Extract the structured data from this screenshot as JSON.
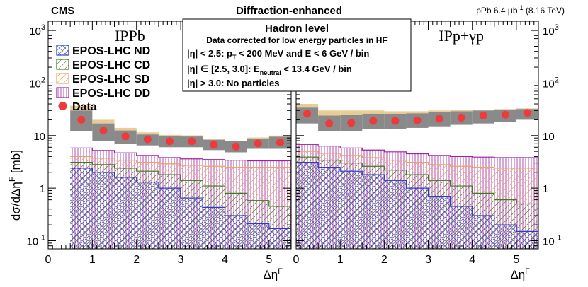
{
  "header": {
    "experiment": "CMS",
    "title": "Diffraction-enhanced",
    "lumi_prefix": "pPb 6.4 ",
    "lumi_unit": "μb",
    "lumi_exp": "-1",
    "lumi_suffix": " (8.16 TeV)"
  },
  "selection_box": {
    "title": "Hadron level",
    "subtitle": "Data corrected for low energy particles in HF",
    "line1_prefix": "|η| < 2.5:  p",
    "line1_sub": "T",
    "line1_suffix": " < 200 MeV  and  E < 6 GeV / bin",
    "line2_prefix": "|η| ∈ [2.5, 3.0]:  E",
    "line2_sub": "neutral",
    "line2_suffix": " < 13.4 GeV / bin",
    "line3": "|η| > 3.0:  No particles"
  },
  "colors": {
    "ND": "#2b3ec2",
    "CD": "#3a7d1e",
    "SD": "#f0a060",
    "DD": "#a020a0",
    "data": "#ee3a3a",
    "syst_band": "#8a8a8a",
    "model_band": "#e8cc96"
  },
  "chart_data": [
    {
      "type": "histogram",
      "panel_label": "IPPb",
      "title": "Diffraction-enhanced",
      "xlabel": "Δη",
      "xlabel_sup": "F",
      "ylabel": "dσ/dΔη",
      "ylabel_sup": "F",
      "ylabel_unit": " [mb]",
      "xlim": [
        0,
        5.5
      ],
      "ylim": [
        0.07,
        1500
      ],
      "yscale": "log",
      "x_ticks": [
        "0",
        "1",
        "2",
        "3",
        "4",
        "5"
      ],
      "y_ticks": [
        {
          "base": "10",
          "exp": "-1"
        },
        {
          "base": "1",
          "exp": ""
        },
        {
          "base": "10",
          "exp": ""
        },
        {
          "base": "10",
          "exp": "2"
        },
        {
          "base": "10",
          "exp": "3"
        }
      ],
      "bin_edges": [
        0.5,
        1.0,
        1.5,
        2.0,
        2.5,
        3.0,
        3.5,
        4.0,
        4.5,
        5.0,
        5.5
      ],
      "series": [
        {
          "name": "EPOS-LHC ND",
          "key": "ND",
          "values": [
            2.4,
            2.0,
            1.6,
            1.3,
            1.0,
            0.65,
            0.43,
            0.3,
            0.21,
            0.17
          ]
        },
        {
          "name": "EPOS-LHC CD",
          "key": "CD",
          "values": [
            3.1,
            2.8,
            2.4,
            2.1,
            1.8,
            1.4,
            1.1,
            0.8,
            0.58,
            0.45
          ]
        },
        {
          "name": "EPOS-LHC SD",
          "key": "SD",
          "values": [
            4.0,
            3.7,
            3.4,
            3.1,
            2.9,
            2.7,
            2.6,
            2.5,
            2.5,
            2.5
          ]
        },
        {
          "name": "EPOS-LHC DD",
          "key": "DD",
          "values": [
            5.8,
            5.2,
            4.7,
            4.2,
            3.8,
            3.6,
            3.5,
            3.4,
            3.3,
            3.3
          ]
        }
      ],
      "data": {
        "name": "Data",
        "x": [
          0.75,
          1.25,
          1.75,
          2.25,
          2.75,
          3.25,
          3.75,
          4.25,
          4.75,
          5.25
        ],
        "y": [
          20,
          12.5,
          9.7,
          8.5,
          7.8,
          7.8,
          6.7,
          6.2,
          7.1,
          7.4
        ],
        "syst_low": [
          12,
          8.0,
          7.0,
          6.5,
          6.0,
          6.0,
          5.3,
          4.8,
          5.6,
          5.6
        ],
        "syst_high": [
          30,
          17,
          12.5,
          10.5,
          9.7,
          9.6,
          8.3,
          7.8,
          8.8,
          9.5
        ],
        "model_high": [
          37,
          20,
          14,
          11.5,
          10.3,
          10.1,
          8.6,
          8.0,
          9.2,
          10.0
        ]
      }
    },
    {
      "type": "histogram",
      "panel_label": "IPp+γp",
      "xlabel": "Δη",
      "xlabel_sup": "F",
      "xlim": [
        0,
        5.5
      ],
      "ylim": [
        0.07,
        1500
      ],
      "yscale": "log",
      "x_ticks": [
        "0",
        "1",
        "2",
        "3",
        "4",
        "5"
      ],
      "y_ticks": [
        {
          "base": "10",
          "exp": "-1"
        },
        {
          "base": "1",
          "exp": ""
        },
        {
          "base": "10",
          "exp": ""
        },
        {
          "base": "10",
          "exp": "2"
        },
        {
          "base": "10",
          "exp": "3"
        }
      ],
      "bin_edges": [
        0.0,
        0.5,
        1.0,
        1.5,
        2.0,
        2.5,
        3.0,
        3.5,
        4.0,
        4.5,
        5.0,
        5.5
      ],
      "series": [
        {
          "name": "EPOS-LHC ND",
          "key": "ND",
          "values": [
            3.1,
            2.5,
            2.1,
            1.8,
            1.4,
            1.0,
            0.7,
            0.45,
            0.3,
            0.2,
            0.15
          ]
        },
        {
          "name": "EPOS-LHC CD",
          "key": "CD",
          "values": [
            3.9,
            3.4,
            3.0,
            2.6,
            2.2,
            1.8,
            1.4,
            1.1,
            0.8,
            0.6,
            0.5
          ]
        },
        {
          "name": "EPOS-LHC SD",
          "key": "SD",
          "values": [
            5.0,
            4.6,
            4.2,
            3.8,
            3.4,
            3.1,
            2.8,
            2.6,
            2.5,
            2.4,
            2.4
          ]
        },
        {
          "name": "EPOS-LHC DD",
          "key": "DD",
          "values": [
            6.8,
            6.3,
            5.8,
            5.3,
            4.9,
            4.5,
            4.2,
            4.0,
            3.9,
            3.8,
            3.8
          ]
        }
      ],
      "data": {
        "name": "Data",
        "x": [
          0.25,
          0.75,
          1.25,
          1.75,
          2.25,
          2.75,
          3.25,
          3.75,
          4.25,
          4.75,
          5.25
        ],
        "y": [
          26,
          17,
          17.5,
          19,
          19,
          19.5,
          21,
          22,
          24,
          25,
          27
        ],
        "syst_low": [
          17,
          12,
          12,
          13.5,
          13.5,
          14,
          15,
          16,
          17,
          18,
          20
        ],
        "syst_high": [
          34,
          24,
          25,
          26,
          26,
          26.5,
          28,
          29,
          30,
          31,
          32
        ],
        "model_high": [
          40,
          30,
          30,
          30,
          29,
          29,
          30,
          30.5,
          31,
          32,
          33
        ]
      }
    }
  ]
}
